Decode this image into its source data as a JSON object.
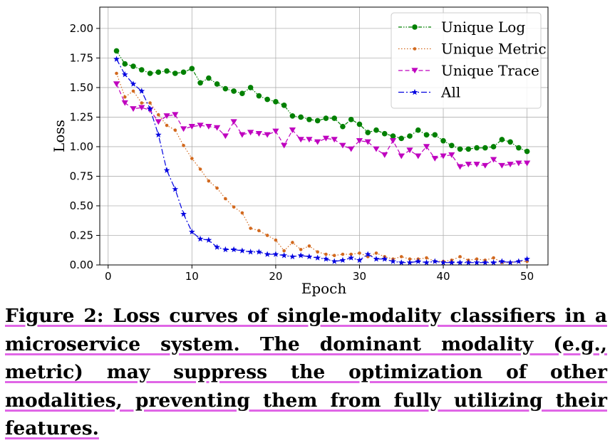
{
  "chart_data": {
    "type": "line",
    "xlabel": "Epoch",
    "ylabel": "Loss",
    "xlim": [
      -1,
      52.5
    ],
    "ylim": [
      0,
      2.18
    ],
    "xticks": [
      0,
      10,
      20,
      30,
      40,
      50
    ],
    "yticks": [
      0.0,
      0.25,
      0.5,
      0.75,
      1.0,
      1.25,
      1.5,
      1.75,
      2.0
    ],
    "xtick_labels": [
      "0",
      "10",
      "20",
      "30",
      "40",
      "50"
    ],
    "ytick_labels": [
      "0.00",
      "0.25",
      "0.50",
      "0.75",
      "1.00",
      "1.25",
      "1.50",
      "1.75",
      "2.00"
    ],
    "grid": true,
    "legend_position": "top-right",
    "x": [
      1,
      2,
      3,
      4,
      5,
      6,
      7,
      8,
      9,
      10,
      11,
      12,
      13,
      14,
      15,
      16,
      17,
      18,
      19,
      20,
      21,
      22,
      23,
      24,
      25,
      26,
      27,
      28,
      29,
      30,
      31,
      32,
      33,
      34,
      35,
      36,
      37,
      38,
      39,
      40,
      41,
      42,
      43,
      44,
      45,
      46,
      47,
      48,
      49,
      50
    ],
    "series": [
      {
        "name": "Unique Log",
        "color": "#008000",
        "linestyle": "dashdotdot",
        "marker": "circle",
        "values": [
          1.81,
          1.7,
          1.68,
          1.65,
          1.62,
          1.63,
          1.64,
          1.62,
          1.63,
          1.66,
          1.54,
          1.58,
          1.53,
          1.49,
          1.47,
          1.45,
          1.5,
          1.43,
          1.4,
          1.38,
          1.35,
          1.26,
          1.25,
          1.23,
          1.22,
          1.24,
          1.24,
          1.17,
          1.23,
          1.19,
          1.12,
          1.14,
          1.11,
          1.09,
          1.07,
          1.09,
          1.14,
          1.1,
          1.1,
          1.05,
          1.01,
          0.98,
          0.98,
          0.99,
          0.99,
          1.0,
          1.06,
          1.04,
          0.99,
          0.96
        ]
      },
      {
        "name": "Unique Metric",
        "color": "#d2691e",
        "linestyle": "dotted",
        "marker": "small-circle",
        "values": [
          1.62,
          1.42,
          1.47,
          1.37,
          1.37,
          1.27,
          1.18,
          1.14,
          1.01,
          0.9,
          0.81,
          0.71,
          0.65,
          0.56,
          0.49,
          0.44,
          0.31,
          0.29,
          0.25,
          0.21,
          0.12,
          0.19,
          0.13,
          0.16,
          0.11,
          0.09,
          0.08,
          0.09,
          0.09,
          0.1,
          0.07,
          0.1,
          0.07,
          0.05,
          0.07,
          0.05,
          0.05,
          0.06,
          0.03,
          0.03,
          0.04,
          0.07,
          0.04,
          0.05,
          0.04,
          0.06,
          0.02,
          0.02,
          0.03,
          0.03
        ]
      },
      {
        "name": "Unique Trace",
        "color": "#bf00bf",
        "linestyle": "dashed",
        "marker": "triangle-down",
        "values": [
          1.53,
          1.37,
          1.32,
          1.33,
          1.31,
          1.21,
          1.26,
          1.27,
          1.15,
          1.17,
          1.18,
          1.17,
          1.16,
          1.09,
          1.21,
          1.1,
          1.12,
          1.11,
          1.1,
          1.13,
          1.01,
          1.14,
          1.06,
          1.06,
          1.04,
          1.07,
          1.06,
          1.01,
          0.98,
          1.05,
          1.04,
          0.98,
          0.93,
          1.05,
          0.92,
          0.97,
          0.92,
          1.0,
          0.9,
          0.92,
          0.93,
          0.83,
          0.85,
          0.85,
          0.84,
          0.89,
          0.84,
          0.85,
          0.86,
          0.86
        ]
      },
      {
        "name": "All",
        "color": "#0000e0",
        "linestyle": "dashdot",
        "marker": "star",
        "values": [
          1.74,
          1.61,
          1.53,
          1.47,
          1.32,
          1.1,
          0.8,
          0.64,
          0.43,
          0.28,
          0.22,
          0.21,
          0.15,
          0.13,
          0.13,
          0.12,
          0.11,
          0.11,
          0.09,
          0.09,
          0.08,
          0.07,
          0.08,
          0.07,
          0.06,
          0.05,
          0.03,
          0.04,
          0.06,
          0.04,
          0.09,
          0.05,
          0.05,
          0.03,
          0.02,
          0.02,
          0.03,
          0.02,
          0.03,
          0.02,
          0.02,
          0.02,
          0.02,
          0.02,
          0.02,
          0.02,
          0.03,
          0.02,
          0.03,
          0.05
        ]
      }
    ]
  },
  "caption": {
    "label": "Figure 2:",
    "text": "Loss curves of single-modality classifiers in a microservice system. The dominant modality (e.g., metric) may suppress the optimization of other modalities, preventing them from fully utilizing their features."
  }
}
